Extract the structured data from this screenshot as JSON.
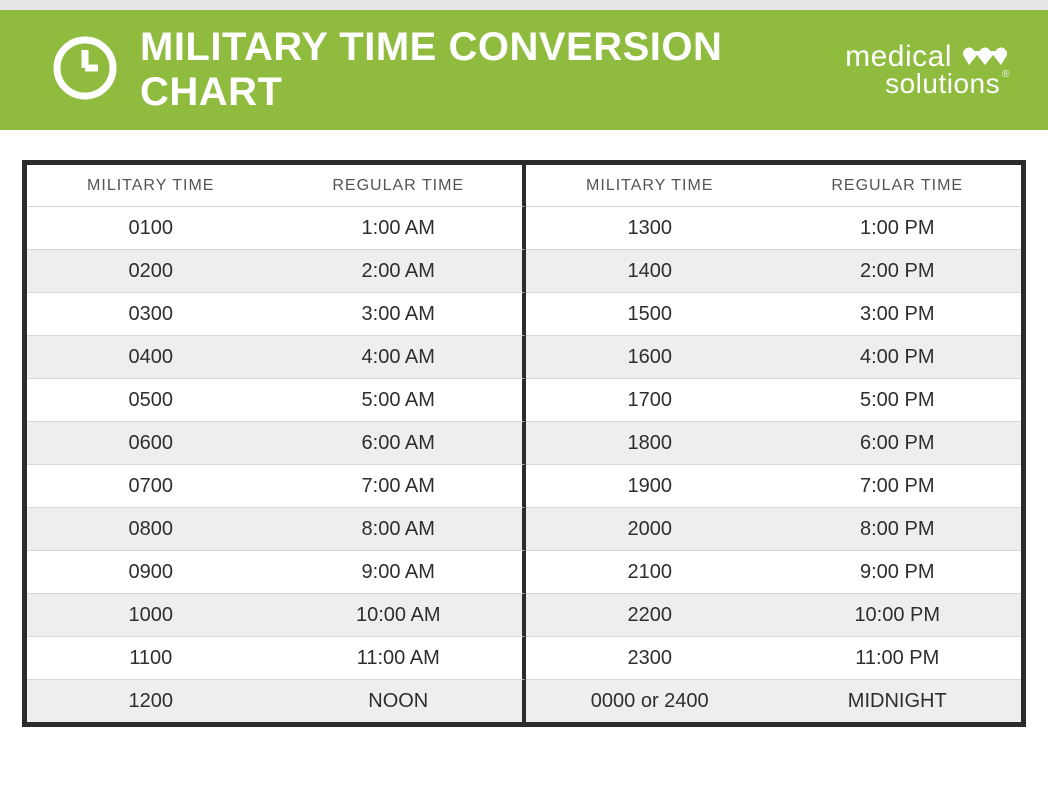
{
  "colors": {
    "header_bg": "#8fbb3e",
    "border": "#2b2b2b",
    "text": "#2e2e2e",
    "header_text": "#545454",
    "row_alt_bg": "#eeeeee"
  },
  "header": {
    "title": "MILITARY TIME CONVERSION CHART",
    "brand_word1": "medical",
    "brand_word2": "solutions",
    "registered_mark": "®"
  },
  "table": {
    "columns": [
      "MILITARY TIME",
      "REGULAR TIME",
      "MILITARY TIME",
      "REGULAR TIME"
    ],
    "rows": [
      [
        "0100",
        "1:00 AM",
        "1300",
        "1:00 PM"
      ],
      [
        "0200",
        "2:00 AM",
        "1400",
        "2:00 PM"
      ],
      [
        "0300",
        "3:00 AM",
        "1500",
        "3:00 PM"
      ],
      [
        "0400",
        "4:00 AM",
        "1600",
        "4:00 PM"
      ],
      [
        "0500",
        "5:00 AM",
        "1700",
        "5:00 PM"
      ],
      [
        "0600",
        "6:00 AM",
        "1800",
        "6:00 PM"
      ],
      [
        "0700",
        "7:00 AM",
        "1900",
        "7:00 PM"
      ],
      [
        "0800",
        "8:00 AM",
        "2000",
        "8:00 PM"
      ],
      [
        "0900",
        "9:00 AM",
        "2100",
        "9:00 PM"
      ],
      [
        "1000",
        "10:00 AM",
        "2200",
        "10:00 PM"
      ],
      [
        "1100",
        "11:00 AM",
        "2300",
        "11:00 PM"
      ],
      [
        "1200",
        "NOON",
        "0000 or 2400",
        "MIDNIGHT"
      ]
    ]
  }
}
